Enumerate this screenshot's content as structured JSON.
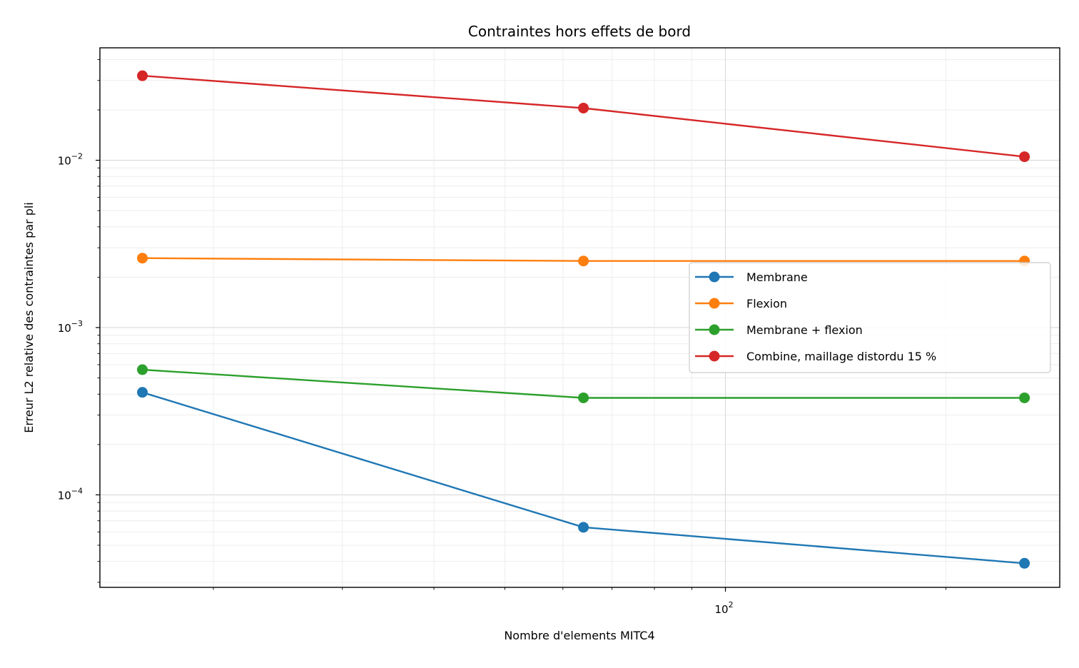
{
  "chart_data": {
    "type": "line",
    "title": "Contraintes hors effets de bord",
    "xlabel": "Nombre d'elements MITC4",
    "ylabel": "Erreur L2 relative des contraintes par pli",
    "xscale": "log",
    "yscale": "log",
    "grid": true,
    "legend_position": "center-right",
    "x": [
      16,
      64,
      256
    ],
    "xlim": [
      14,
      286
    ],
    "ylim": [
      2.8e-05,
      0.047
    ],
    "x_ticks": [
      {
        "value": 100,
        "base": "10",
        "exp": "2"
      }
    ],
    "y_ticks": [
      {
        "value": 0.0001,
        "base": "10",
        "exp": "−4"
      },
      {
        "value": 0.001,
        "base": "10",
        "exp": "−3"
      },
      {
        "value": 0.01,
        "base": "10",
        "exp": "−2"
      }
    ],
    "series": [
      {
        "name": "Membrane",
        "color": "#1f77b4",
        "values": [
          0.00041,
          6.4e-05,
          3.9e-05
        ]
      },
      {
        "name": "Flexion",
        "color": "#ff7f0e",
        "values": [
          0.0026,
          0.0025,
          0.0025
        ]
      },
      {
        "name": "Membrane + flexion",
        "color": "#2ca02c",
        "values": [
          0.00056,
          0.00038,
          0.00038
        ]
      },
      {
        "name": "Combine, maillage distordu 15 %",
        "color": "#d62728",
        "values": [
          0.032,
          0.0205,
          0.0105
        ]
      }
    ]
  }
}
